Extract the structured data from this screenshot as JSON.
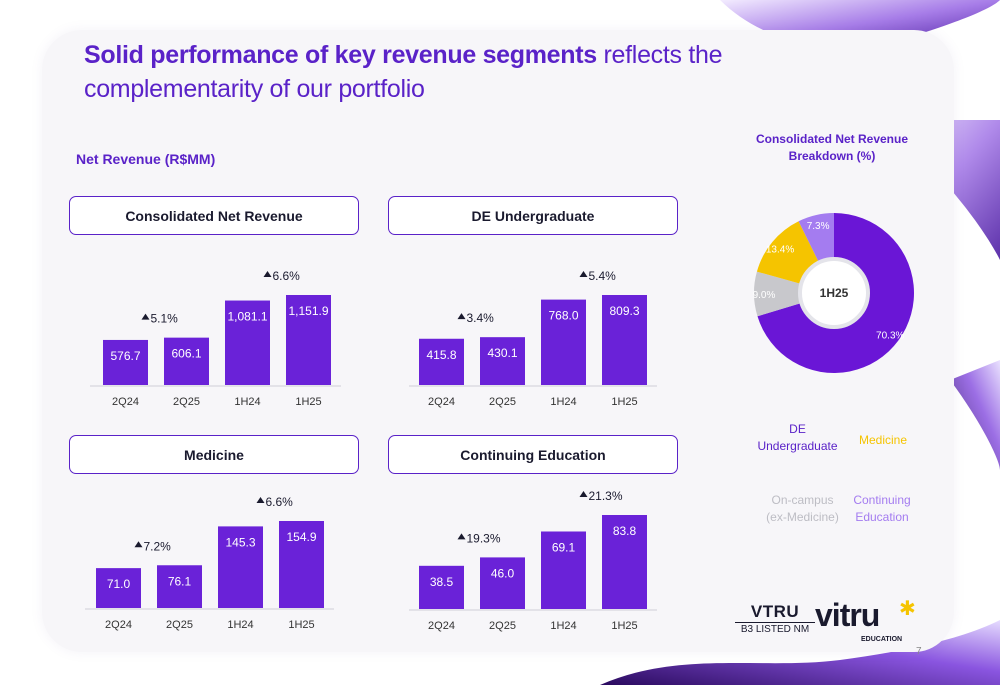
{
  "title": {
    "bold": "Solid performance of key revenue segments",
    "regular": " reflects the complementarity of our portfolio"
  },
  "subtitle": "Net Revenue (R$MM)",
  "chart_data": [
    {
      "type": "bar",
      "title": "Consolidated Net Revenue",
      "categories": [
        "2Q24",
        "2Q25",
        "1H24",
        "1H25"
      ],
      "values": [
        576.7,
        606.1,
        1081.1,
        1151.9
      ],
      "labels": [
        "576.7",
        "606.1",
        "1,081.1",
        "1,151.9"
      ],
      "growth": [
        "5.1%",
        "6.6%"
      ],
      "color": "#6a22d8"
    },
    {
      "type": "bar",
      "title": "DE Undergraduate",
      "categories": [
        "2Q24",
        "2Q25",
        "1H24",
        "1H25"
      ],
      "values": [
        415.8,
        430.1,
        768.0,
        809.3
      ],
      "labels": [
        "415.8",
        "430.1",
        "768.0",
        "809.3"
      ],
      "growth": [
        "3.4%",
        "5.4%"
      ],
      "color": "#6a22d8"
    },
    {
      "type": "bar",
      "title": "Medicine",
      "categories": [
        "2Q24",
        "2Q25",
        "1H24",
        "1H25"
      ],
      "values": [
        71.0,
        76.1,
        145.3,
        154.9
      ],
      "labels": [
        "71.0",
        "76.1",
        "145.3",
        "154.9"
      ],
      "growth": [
        "7.2%",
        "6.6%"
      ],
      "color": "#6a22d8"
    },
    {
      "type": "bar",
      "title": "Continuing Education",
      "categories": [
        "2Q24",
        "2Q25",
        "1H24",
        "1H25"
      ],
      "values": [
        38.5,
        46.0,
        69.1,
        83.8
      ],
      "labels": [
        "38.5",
        "46.0",
        "69.1",
        "83.8"
      ],
      "growth": [
        "19.3%",
        "21.3%"
      ],
      "color": "#6a22d8"
    },
    {
      "type": "pie",
      "title": "Consolidated Net Revenue Breakdown (%)",
      "center_label": "1H25",
      "slices": [
        {
          "name": "DE Undergraduate",
          "value": 70.3,
          "label": "70.3%",
          "color": "#6a16d6"
        },
        {
          "name": "On-campus (ex-Medicine)",
          "value": 9.0,
          "label": "9.0%",
          "color": "#c8c8cc"
        },
        {
          "name": "Medicine",
          "value": 13.4,
          "label": "13.4%",
          "color": "#f5c400"
        },
        {
          "name": "Continuing Education",
          "value": 7.3,
          "label": "7.3%",
          "color": "#a47cf0"
        }
      ]
    }
  ],
  "legend": {
    "de": "DE\nUndergraduate",
    "medicine": "Medicine",
    "oncampus": "On-campus\n(ex-Medicine)",
    "continuing": "Continuing\nEducation"
  },
  "logos": {
    "vtru_main": "VTRU",
    "vtru_sub": "B3 LISTED NM",
    "vitru_word": "vitru",
    "vitru_sub": "EDUCATION"
  },
  "page_number": "7"
}
